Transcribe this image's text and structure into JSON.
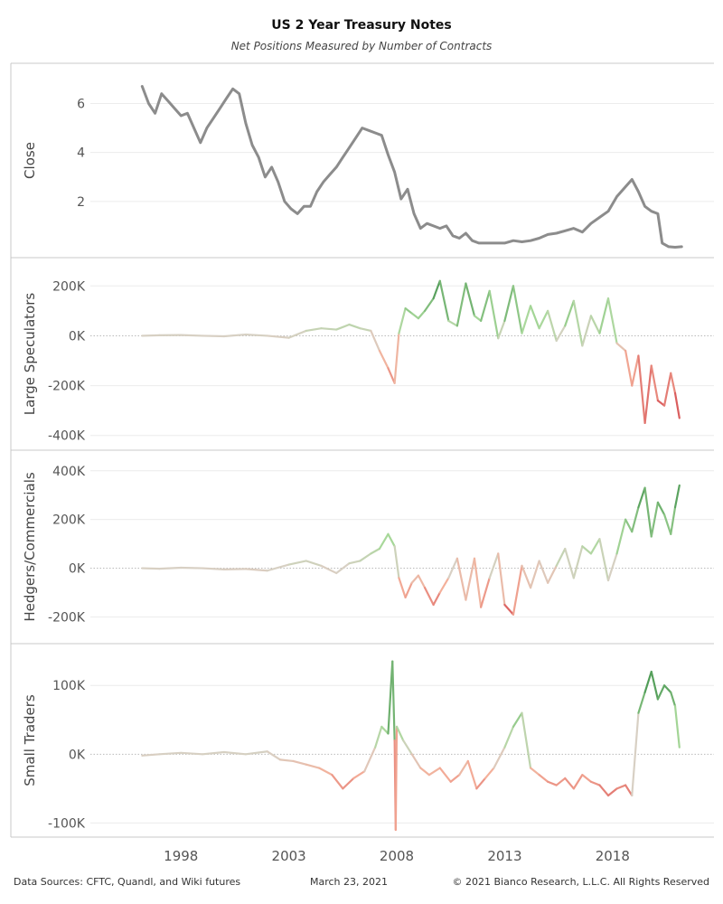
{
  "header": {
    "title": "US 2 Year Treasury Notes",
    "subtitle": "Net Positions Measured by Number of Contracts"
  },
  "footer": {
    "source": "Data Sources: CFTC, Quandl, and Wiki futures",
    "date": "March 23, 2021",
    "copyright": "© 2021 Bianco Research, L.L.C. All Rights Reserved"
  },
  "colors": {
    "close_line": "#8c8c8c",
    "positive_dark": "#1f7a32",
    "positive_light": "#a8d89a",
    "neutral": "#d8d0c4",
    "negative_light": "#f4b09a",
    "negative_dark": "#c4162a",
    "zero_line": "#bbbbbb",
    "grid": "#ececec"
  },
  "chart_data": {
    "type": "line",
    "x_ticks": [
      "1998",
      "2003",
      "2008",
      "2013",
      "2018"
    ],
    "x_tick_values": [
      1998,
      2003,
      2008,
      2013,
      2018
    ],
    "xlim": [
      1993.8,
      2022.7
    ],
    "panels": [
      {
        "name": "Close",
        "ylabel": "Close",
        "ylim": [
          0,
          7.2
        ],
        "ticks": [
          2,
          4,
          6
        ],
        "tick_labels": [
          "2",
          "4",
          "6"
        ],
        "zero_line": false,
        "colored": false,
        "x": [
          1996.2,
          1996.5,
          1996.8,
          1997.1,
          1997.4,
          1997.7,
          1998.0,
          1998.3,
          1998.6,
          1998.9,
          1999.2,
          1999.5,
          1999.8,
          2000.1,
          2000.4,
          2000.7,
          2001.0,
          2001.3,
          2001.6,
          2001.9,
          2002.2,
          2002.5,
          2002.8,
          2003.1,
          2003.4,
          2003.7,
          2004.0,
          2004.3,
          2004.6,
          2004.9,
          2005.2,
          2005.5,
          2005.8,
          2006.1,
          2006.4,
          2006.7,
          2007.0,
          2007.3,
          2007.6,
          2007.9,
          2008.2,
          2008.5,
          2008.8,
          2009.1,
          2009.4,
          2009.7,
          2010.0,
          2010.3,
          2010.6,
          2010.9,
          2011.2,
          2011.5,
          2011.8,
          2012.2,
          2012.6,
          2013.0,
          2013.4,
          2013.8,
          2014.2,
          2014.6,
          2015.0,
          2015.4,
          2015.8,
          2016.2,
          2016.6,
          2017.0,
          2017.4,
          2017.8,
          2018.2,
          2018.6,
          2018.9,
          2019.2,
          2019.5,
          2019.8,
          2020.1,
          2020.3,
          2020.6,
          2020.9,
          2021.2
        ],
        "y": [
          6.7,
          6.0,
          5.6,
          6.4,
          6.1,
          5.8,
          5.5,
          5.6,
          5.0,
          4.4,
          5.0,
          5.4,
          5.8,
          6.2,
          6.6,
          6.4,
          5.2,
          4.3,
          3.8,
          3.0,
          3.4,
          2.8,
          2.0,
          1.7,
          1.5,
          1.8,
          1.8,
          2.4,
          2.8,
          3.1,
          3.4,
          3.8,
          4.2,
          4.6,
          5.0,
          4.9,
          4.8,
          4.7,
          3.9,
          3.2,
          2.1,
          2.5,
          1.5,
          0.9,
          1.1,
          1.0,
          0.9,
          1.0,
          0.6,
          0.5,
          0.7,
          0.4,
          0.3,
          0.3,
          0.3,
          0.3,
          0.4,
          0.35,
          0.4,
          0.5,
          0.65,
          0.7,
          0.8,
          0.9,
          0.75,
          1.1,
          1.35,
          1.6,
          2.2,
          2.6,
          2.9,
          2.4,
          1.8,
          1.6,
          1.5,
          0.3,
          0.15,
          0.13,
          0.15
        ]
      },
      {
        "name": "Large Speculators",
        "ylabel": "Large Speculators",
        "ylim": [
          -430000,
          270000
        ],
        "ticks": [
          200000,
          0,
          -200000,
          -400000
        ],
        "tick_labels": [
          "200K",
          "0K",
          "-200K",
          "-400K"
        ],
        "zero_line": true,
        "colored": true,
        "x": [
          1996.2,
          1997.0,
          1998.0,
          1999.0,
          2000.0,
          2001.0,
          2002.0,
          2003.0,
          2003.8,
          2004.5,
          2005.2,
          2005.8,
          2006.3,
          2006.8,
          2007.2,
          2007.6,
          2007.9,
          2008.1,
          2008.4,
          2008.7,
          2009.0,
          2009.3,
          2009.7,
          2010.0,
          2010.4,
          2010.8,
          2011.2,
          2011.6,
          2011.9,
          2012.3,
          2012.7,
          2013.0,
          2013.4,
          2013.8,
          2014.2,
          2014.6,
          2015.0,
          2015.4,
          2015.8,
          2016.2,
          2016.6,
          2017.0,
          2017.4,
          2017.8,
          2018.2,
          2018.6,
          2018.9,
          2019.2,
          2019.5,
          2019.8,
          2020.1,
          2020.4,
          2020.7,
          2020.9,
          2021.1
        ],
        "y": [
          0,
          2000,
          3000,
          0,
          -2000,
          5000,
          0,
          -8000,
          20000,
          30000,
          25000,
          45000,
          30000,
          20000,
          -60000,
          -130000,
          -190000,
          10000,
          110000,
          90000,
          70000,
          100000,
          150000,
          220000,
          60000,
          40000,
          210000,
          80000,
          60000,
          180000,
          -10000,
          60000,
          200000,
          10000,
          120000,
          30000,
          100000,
          -20000,
          40000,
          140000,
          -40000,
          80000,
          10000,
          150000,
          -30000,
          -60000,
          -200000,
          -80000,
          -350000,
          -120000,
          -260000,
          -280000,
          -150000,
          -230000,
          -330000
        ]
      },
      {
        "name": "Hedgers/Commercials",
        "ylabel": "Hedgers/Commercials",
        "ylim": [
          -280000,
          440000
        ],
        "ticks": [
          400000,
          200000,
          0,
          -200000
        ],
        "tick_labels": [
          "400K",
          "200K",
          "0K",
          "-200K"
        ],
        "zero_line": true,
        "colored": true,
        "x": [
          1996.2,
          1997.0,
          1998.0,
          1999.0,
          2000.0,
          2001.0,
          2002.0,
          2003.0,
          2003.8,
          2004.5,
          2005.2,
          2005.8,
          2006.3,
          2006.8,
          2007.2,
          2007.6,
          2007.9,
          2008.1,
          2008.4,
          2008.7,
          2009.0,
          2009.3,
          2009.7,
          2010.0,
          2010.4,
          2010.8,
          2011.2,
          2011.6,
          2011.9,
          2012.3,
          2012.7,
          2013.0,
          2013.4,
          2013.8,
          2014.2,
          2014.6,
          2015.0,
          2015.4,
          2015.8,
          2016.2,
          2016.6,
          2017.0,
          2017.4,
          2017.8,
          2018.2,
          2018.6,
          2018.9,
          2019.2,
          2019.5,
          2019.8,
          2020.1,
          2020.4,
          2020.7,
          2020.9,
          2021.1
        ],
        "y": [
          0,
          -2000,
          2000,
          0,
          -5000,
          -3000,
          -10000,
          15000,
          30000,
          10000,
          -20000,
          20000,
          30000,
          60000,
          80000,
          140000,
          90000,
          -40000,
          -120000,
          -60000,
          -30000,
          -80000,
          -150000,
          -100000,
          -40000,
          40000,
          -130000,
          40000,
          -160000,
          -40000,
          60000,
          -150000,
          -190000,
          10000,
          -80000,
          30000,
          -60000,
          10000,
          80000,
          -40000,
          90000,
          60000,
          120000,
          -50000,
          60000,
          200000,
          150000,
          250000,
          330000,
          130000,
          270000,
          220000,
          140000,
          250000,
          340000
        ]
      },
      {
        "name": "Small Traders",
        "ylabel": "Small Traders",
        "ylim": [
          -110000,
          145000
        ],
        "ticks": [
          100000,
          0,
          -100000
        ],
        "tick_labels": [
          "100K",
          "0K",
          "-100K"
        ],
        "zero_line": true,
        "colored": true,
        "x": [
          1996.2,
          1997.0,
          1998.0,
          1999.0,
          2000.0,
          2001.0,
          2002.0,
          2002.6,
          2003.2,
          2003.8,
          2004.4,
          2005.0,
          2005.5,
          2006.0,
          2006.5,
          2007.0,
          2007.3,
          2007.6,
          2007.8,
          2007.9,
          2007.95,
          2008.0,
          2008.3,
          2008.7,
          2009.1,
          2009.5,
          2010.0,
          2010.5,
          2010.9,
          2011.3,
          2011.7,
          2012.1,
          2012.5,
          2013.0,
          2013.4,
          2013.8,
          2014.2,
          2014.6,
          2015.0,
          2015.4,
          2015.8,
          2016.2,
          2016.6,
          2017.0,
          2017.4,
          2017.8,
          2018.2,
          2018.6,
          2018.9,
          2019.2,
          2019.5,
          2019.8,
          2020.1,
          2020.4,
          2020.7,
          2020.9,
          2021.1
        ],
        "y": [
          -2000,
          0,
          2000,
          0,
          3000,
          0,
          4000,
          -8000,
          -10000,
          -15000,
          -20000,
          -30000,
          -50000,
          -35000,
          -25000,
          10000,
          40000,
          30000,
          135000,
          20000,
          -110000,
          40000,
          20000,
          0,
          -20000,
          -30000,
          -20000,
          -40000,
          -30000,
          -10000,
          -50000,
          -35000,
          -20000,
          10000,
          40000,
          60000,
          -20000,
          -30000,
          -40000,
          -45000,
          -35000,
          -50000,
          -30000,
          -40000,
          -45000,
          -60000,
          -50000,
          -45000,
          -60000,
          60000,
          90000,
          120000,
          80000,
          100000,
          90000,
          70000,
          10000
        ]
      }
    ]
  }
}
